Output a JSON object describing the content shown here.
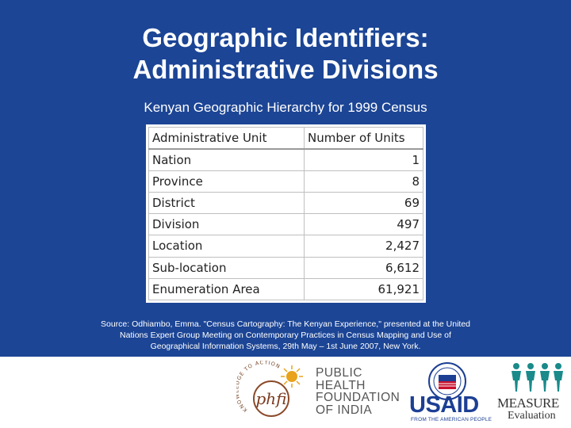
{
  "slide": {
    "title_line1": "Geographic Identifiers:",
    "title_line2": "Administrative Divisions",
    "subtitle": "Kenyan Geographic Hierarchy for 1999 Census",
    "background_color": "#1c4595"
  },
  "table": {
    "headers": [
      "Administrative Unit",
      "Number of Units"
    ],
    "rows": [
      {
        "unit": "Nation",
        "count": "1"
      },
      {
        "unit": "Province",
        "count": "8"
      },
      {
        "unit": "District",
        "count": "69"
      },
      {
        "unit": "Division",
        "count": "497"
      },
      {
        "unit": "Location",
        "count": "2,427"
      },
      {
        "unit": "Sub-location",
        "count": "6,612"
      },
      {
        "unit": "Enumeration Area",
        "count": "61,921"
      }
    ]
  },
  "source": {
    "line1": "Source: Odhiambo, Emma. \"Census Cartography: The Kenyan Experience,\" presented at the United",
    "line2": "Nations Expert Group Meeting on Contemporary Practices in Census Mapping and Use of",
    "line3": "Geographical Information Systems, 29th May – 1st June 2007, New York."
  },
  "footer": {
    "phfi": {
      "logo_text": "phfi",
      "arc_text": "KNOWLEDGE TO ACTION",
      "name_lines": [
        "PUBLIC",
        "HEALTH",
        "FOUNDATION",
        "OF INDIA"
      ]
    },
    "usaid": {
      "word": "USAID",
      "tagline": "FROM THE AMERICAN PEOPLE",
      "color": "#1c3f94"
    },
    "measure": {
      "word": "MEASURE",
      "sub": "Evaluation",
      "accent": "#1a8a8a"
    }
  }
}
